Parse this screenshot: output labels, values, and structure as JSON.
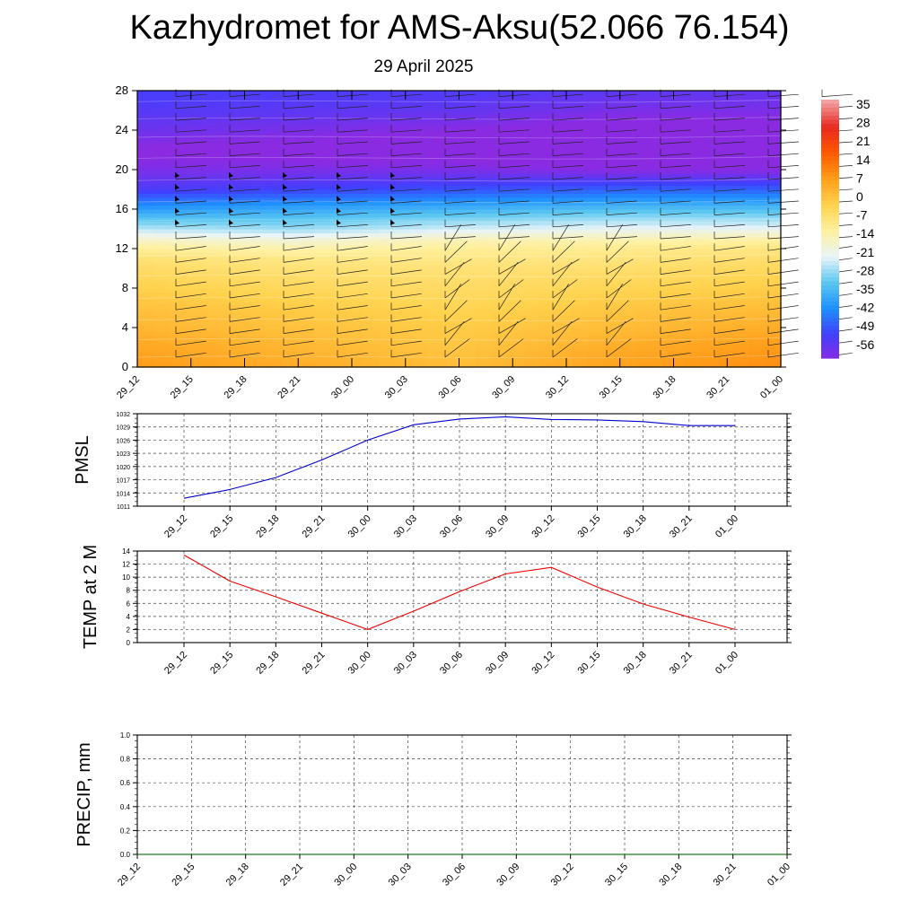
{
  "title": "Kazhydromet for AMS-Aksu(52.066 76.154)",
  "date": "29 April 2025",
  "chart_data": [
    {
      "type": "heatmap",
      "title": "",
      "x_tick_labels": [
        "29_12",
        "29_15",
        "29_18",
        "29_21",
        "30_00",
        "30_03",
        "30_06",
        "30_09",
        "30_12",
        "30_15",
        "30_18",
        "30_21",
        "01_00"
      ],
      "y_ticks": [
        0,
        4,
        8,
        12,
        16,
        20,
        24,
        28
      ],
      "ylim": [
        0,
        28
      ],
      "colorbar_labels": [
        "35",
        "28",
        "21",
        "14",
        "7",
        "0",
        "-7",
        "-14",
        "-21",
        "-28",
        "-35",
        "-42",
        "-49",
        "-56"
      ],
      "temperature_profile": {
        "levels": [
          0,
          2,
          4,
          6,
          8,
          10,
          11,
          12,
          13,
          14,
          16,
          18,
          20,
          22,
          24,
          26,
          28
        ],
        "values": [
          [
            9,
            7,
            4,
            2,
            -1,
            -4,
            -6,
            -10,
            -16,
            -24,
            -38,
            -52,
            -58,
            -61,
            -56,
            -53,
            -51
          ],
          [
            6,
            4,
            2,
            0,
            -3,
            -6,
            -8,
            -12,
            -18,
            -26,
            -36,
            -50,
            -58,
            -62,
            -58,
            -54,
            -52
          ],
          [
            3,
            1,
            0,
            -2,
            -4,
            -6,
            -8,
            -10,
            -14,
            -22,
            -34,
            -48,
            -58,
            -63,
            -60,
            -55,
            -52
          ],
          [
            8,
            6,
            3,
            1,
            -2,
            -5,
            -7,
            -9,
            -13,
            -20,
            -32,
            -46,
            -60,
            -64,
            -62,
            -58,
            -54
          ],
          [
            11,
            9,
            6,
            3,
            0,
            -3,
            -5,
            -7,
            -12,
            -20,
            -32,
            -46,
            -60,
            -64,
            -62,
            -58,
            -55
          ]
        ]
      },
      "wind_barbs": "present",
      "colormap": [
        "#8a2be2",
        "#4040ff",
        "#1e90ff",
        "#5cc8f0",
        "#e8f4f8",
        "#fff1a0",
        "#ffd24d",
        "#ff9e1a",
        "#ff5a00",
        "#e8281e",
        "#f2a0a0"
      ]
    },
    {
      "type": "line",
      "ylabel": "PMSL",
      "x": [
        "29_12",
        "29_15",
        "29_18",
        "29_21",
        "30_00",
        "30_03",
        "30_06",
        "30_09",
        "30_12",
        "30_15",
        "30_18",
        "30_21",
        "01_00"
      ],
      "y_ticks": [
        1011,
        1014,
        1017,
        1020,
        1023,
        1026,
        1029,
        1032
      ],
      "ylim": [
        1011,
        1032
      ],
      "series": [
        {
          "values": [
            1012.8,
            1014.8,
            1017.5,
            1021.5,
            1026.0,
            1029.5,
            1030.8,
            1031.3,
            1030.7,
            1030.6,
            1030.2,
            1029.3,
            1029.3
          ],
          "color": "#0000cc"
        }
      ],
      "grid": true
    },
    {
      "type": "line",
      "ylabel": "TEMP at 2 M",
      "x": [
        "29_12",
        "29_15",
        "29_18",
        "29_21",
        "30_00",
        "30_03",
        "30_06",
        "30_09",
        "30_12",
        "30_15",
        "30_18",
        "30_21",
        "01_00"
      ],
      "y_ticks": [
        0,
        2,
        4,
        6,
        8,
        10,
        12,
        14
      ],
      "ylim": [
        0,
        14
      ],
      "series": [
        {
          "values": [
            13.4,
            9.4,
            7.0,
            4.5,
            2.0,
            4.8,
            7.8,
            10.5,
            11.5,
            8.5,
            5.9,
            3.9,
            2.0
          ],
          "color": "#ee0000"
        }
      ],
      "grid": true
    },
    {
      "type": "line",
      "ylabel": "PRECIP, mm",
      "x": [
        "29_12",
        "29_15",
        "29_18",
        "29_21",
        "30_00",
        "30_03",
        "30_06",
        "30_09",
        "30_12",
        "30_15",
        "30_18",
        "30_21",
        "01_00"
      ],
      "y_ticks": [
        "0.0",
        "0.2",
        "0.4",
        "0.6",
        "0.8",
        "1.0"
      ],
      "ylim": [
        0,
        1
      ],
      "series": [
        {
          "values": [
            0,
            0,
            0,
            0,
            0,
            0,
            0,
            0,
            0,
            0,
            0,
            0,
            0
          ],
          "color": "#007700"
        }
      ],
      "grid": true
    }
  ]
}
